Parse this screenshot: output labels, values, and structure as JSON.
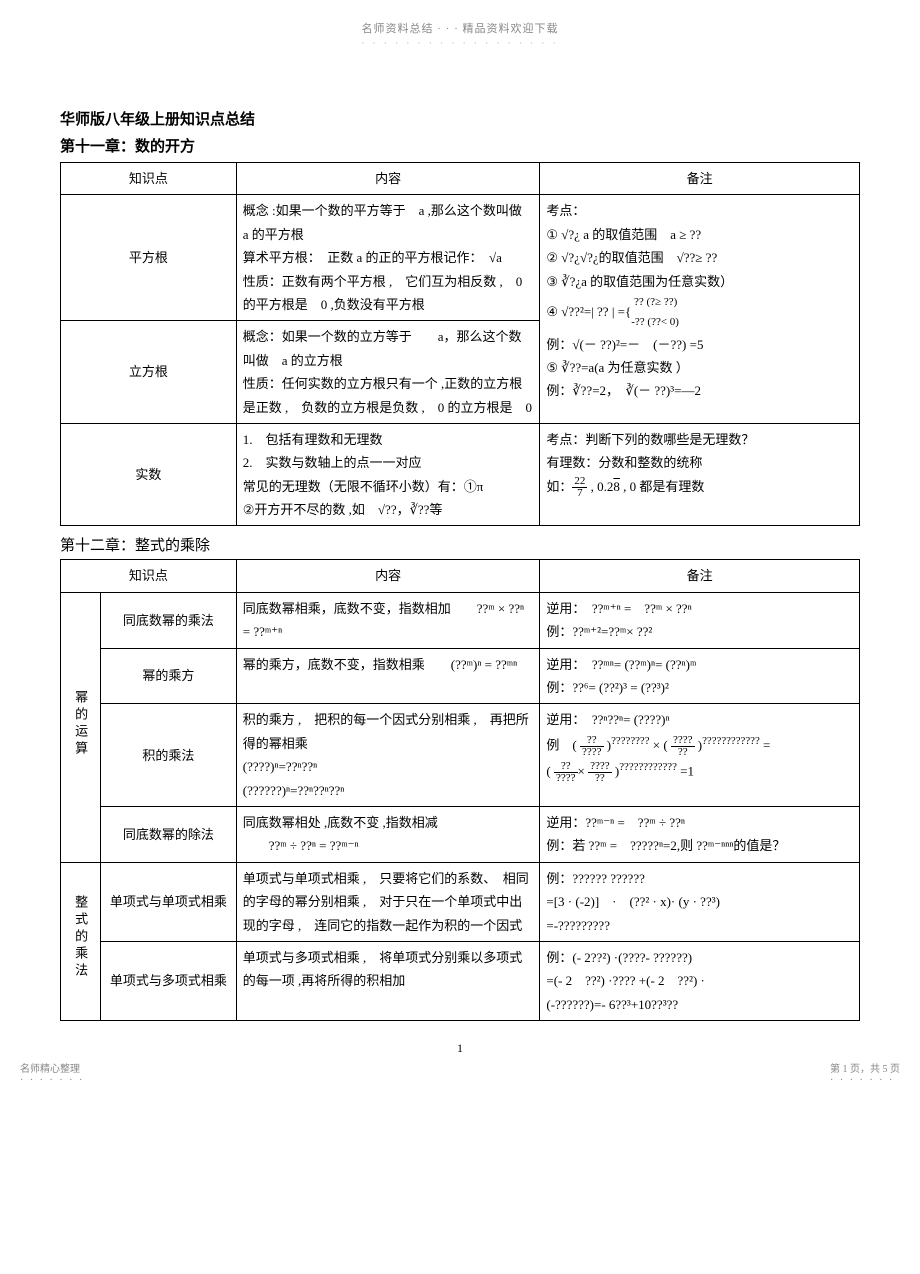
{
  "header": {
    "top": "名师资料总结 · · · 精品资料欢迎下载",
    "dots": "· · · · · · · · · · · · · · · · · ·"
  },
  "titles": {
    "main": "华师版八年级上册知识点总结",
    "chapter11": "第十一章：数的开方",
    "chapter12": "第十二章：整式的乘除"
  },
  "table1": {
    "headers": {
      "kp": "知识点",
      "content": "内容",
      "notes": "备注"
    },
    "rows": [
      {
        "kp": "平方根",
        "content": "概念：如果一个数的平方等于　a，那么这个数叫做　a 的平方根\n算术平方根：　正数 a 的正的平方根记作：　√a\n性质：正数有两个平方根，　它们互为相反数，　0 的平方根是　0，负数没有平方根",
        "notes_header": "考点：",
        "notes_list": [
          "① √?¿ a 的取值范围　a ≥ ??",
          "② √?¿√?¿的取值范围　√??≥ ??",
          "③ ∛?¿a 的取值范围为任意实数）",
          "④ √??=| ?? | ={ ?? (?≥ ??)  -?? (??< 0)"
        ],
        "notes_rowspan": true
      },
      {
        "kp": "立方根",
        "content": "概念：如果一个数的立方等于　a，那么这个数叫做　a 的立方根\n性质：任何实数的立方根只有一个，正数的立方根是正数，　负数的立方根是负数，　0 的立方根是　0",
        "notes_cont": [
          "例：√(－ ??)²=－　(－??) =5",
          "⑤ ∛??=a(a 为任意实数 ）",
          "例：∛??=2，　∛(－ ??)³=—2"
        ]
      },
      {
        "kp": "实数",
        "content": "1.　包括有理数和无理数\n2.　实数与数轴上的点一一对应\n常见的无理数（无限不循环小数）有：①π\n②开方开不尽的数，如　√??，∛??等",
        "notes": "考点：判断下列的数哪些是无理数？\n有理数：分数和整数的统称\n如：22/7，0.28，0 都是有理数"
      }
    ]
  },
  "table2": {
    "headers": {
      "kp": "知识点",
      "content": "内容",
      "notes": "备注"
    },
    "groups": [
      {
        "cat": "幂的运算",
        "rows": [
          {
            "kp": "同底数幂的乘法",
            "content": "同底数幂相乘，底数不变，指数相加　　??ᵐ × ??ⁿ = ??ᵐ⁺ⁿ",
            "notes": "逆用：　??ᵐ⁺ⁿ =　??ᵐ × ??ⁿ\n例：??ᵐ⁺²=??ᵐ× ??²"
          },
          {
            "kp": "幂的乘方",
            "content": "幂的乘方，底数不变，指数相乘　　(??ᵐ)ⁿ = ??ᵐⁿ",
            "notes": "逆用：　??ᵐⁿ= (??ᵐ)ⁿ= (??ⁿ)ᵐ\n例：??⁶= (??²)³ = (??³)²"
          },
          {
            "kp": "积的乘法",
            "content": "积的乘方，　把积的每一个因式分别相乘，　再把所得的幂相乘(????)ⁿ=??ⁿ??ⁿ\n(??????)ⁿ=??ⁿ??ⁿ??ⁿ",
            "notes": "逆用：　??ⁿ??ⁿ= (????)ⁿ\n例　( ??/???? )ⁿⁿⁿⁿⁿⁿ × ( ????/?? )ⁿⁿⁿⁿⁿⁿⁿⁿ =\n( ??/???? × ????/?? )ⁿⁿⁿⁿⁿⁿⁿⁿ =1"
          },
          {
            "kp": "同底数幂的除法",
            "content": "同底数幂相处，底数不变，指数相减\n　　??ᵐ ÷ ??ⁿ = ??ᵐ⁻ⁿ",
            "notes": "逆用：??ᵐ⁻ⁿ =　??ᵐ ÷ ??ⁿ\n例：若 ??ᵐ =　?????ⁿ=2,则 ??ᵐ⁻ⁿⁿⁿ的值是？"
          }
        ]
      },
      {
        "cat": "整式的乘法",
        "rows": [
          {
            "kp": "单项式与单项式相乘",
            "content": "单项式与单项式相乘，　只要将它们的系数、　相同的字母的幂分别相乘，　对于只在一个单项式中出现的字母，　连同它的指数一起作为积的一个因式",
            "notes": "例：?????? ??????\n=[3 · (-2)]　·　(??² · x)· (y · ??³)\n=-?????????"
          },
          {
            "kp": "单项式与多项式相乘",
            "content": "单项式与多项式相乘，　将单项式分别乘以多项式的每一项，再将所得的积相加",
            "notes": "例：(- 2??²) ·(????- ??????)\n=(- 2　??²) ·???? +(- 2　??²) ·(-??????)=- 6??³+10??³??"
          }
        ]
      }
    ]
  },
  "footer": {
    "pagenum": "1",
    "left": "名师精心整理",
    "leftdots": "· · · · · · ·",
    "right": "第 1 页，共 5 页",
    "rightdots": "· · · · · · ·"
  }
}
